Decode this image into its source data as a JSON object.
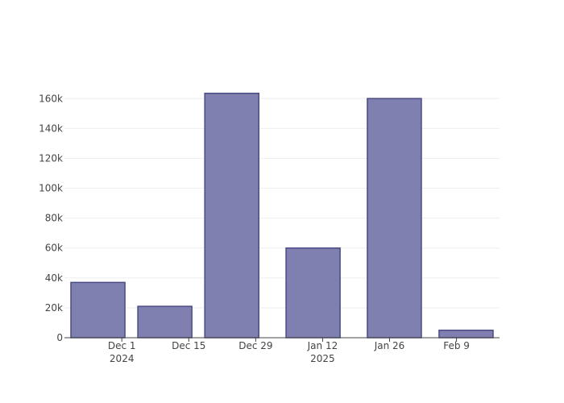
{
  "chart_data": {
    "type": "bar",
    "x": [
      "2024-11-26",
      "2024-12-10",
      "2024-12-24",
      "2025-01-10",
      "2025-01-27",
      "2025-02-11"
    ],
    "values": [
      37000,
      21000,
      163500,
      60000,
      160000,
      5000
    ],
    "color": "#7f7fb0",
    "edge_color": "#4b4b86",
    "xlim": [
      "2024-11-19",
      "2025-02-18"
    ],
    "xticks": [
      {
        "value": "2024-12-01",
        "label": "Dec 1\n2024"
      },
      {
        "value": "2024-12-15",
        "label": "Dec 15"
      },
      {
        "value": "2024-12-29",
        "label": "Dec 29"
      },
      {
        "value": "2025-01-12",
        "label": "Jan 12\n2025"
      },
      {
        "value": "2025-01-26",
        "label": "Jan 26"
      },
      {
        "value": "2025-02-09",
        "label": "Feb 9"
      }
    ],
    "ylim": [
      0,
      172000
    ],
    "yticks": [
      0,
      {
        "value": 20000,
        "label": "20k"
      },
      {
        "value": 40000,
        "label": "40k"
      },
      {
        "value": 60000,
        "label": "60k"
      },
      {
        "value": 80000,
        "label": "80k"
      },
      {
        "value": 100000,
        "label": "100k"
      },
      {
        "value": 120000,
        "label": "120k"
      },
      {
        "value": 140000,
        "label": "140k"
      },
      {
        "value": 160000,
        "label": "160k"
      }
    ],
    "grid": true
  }
}
